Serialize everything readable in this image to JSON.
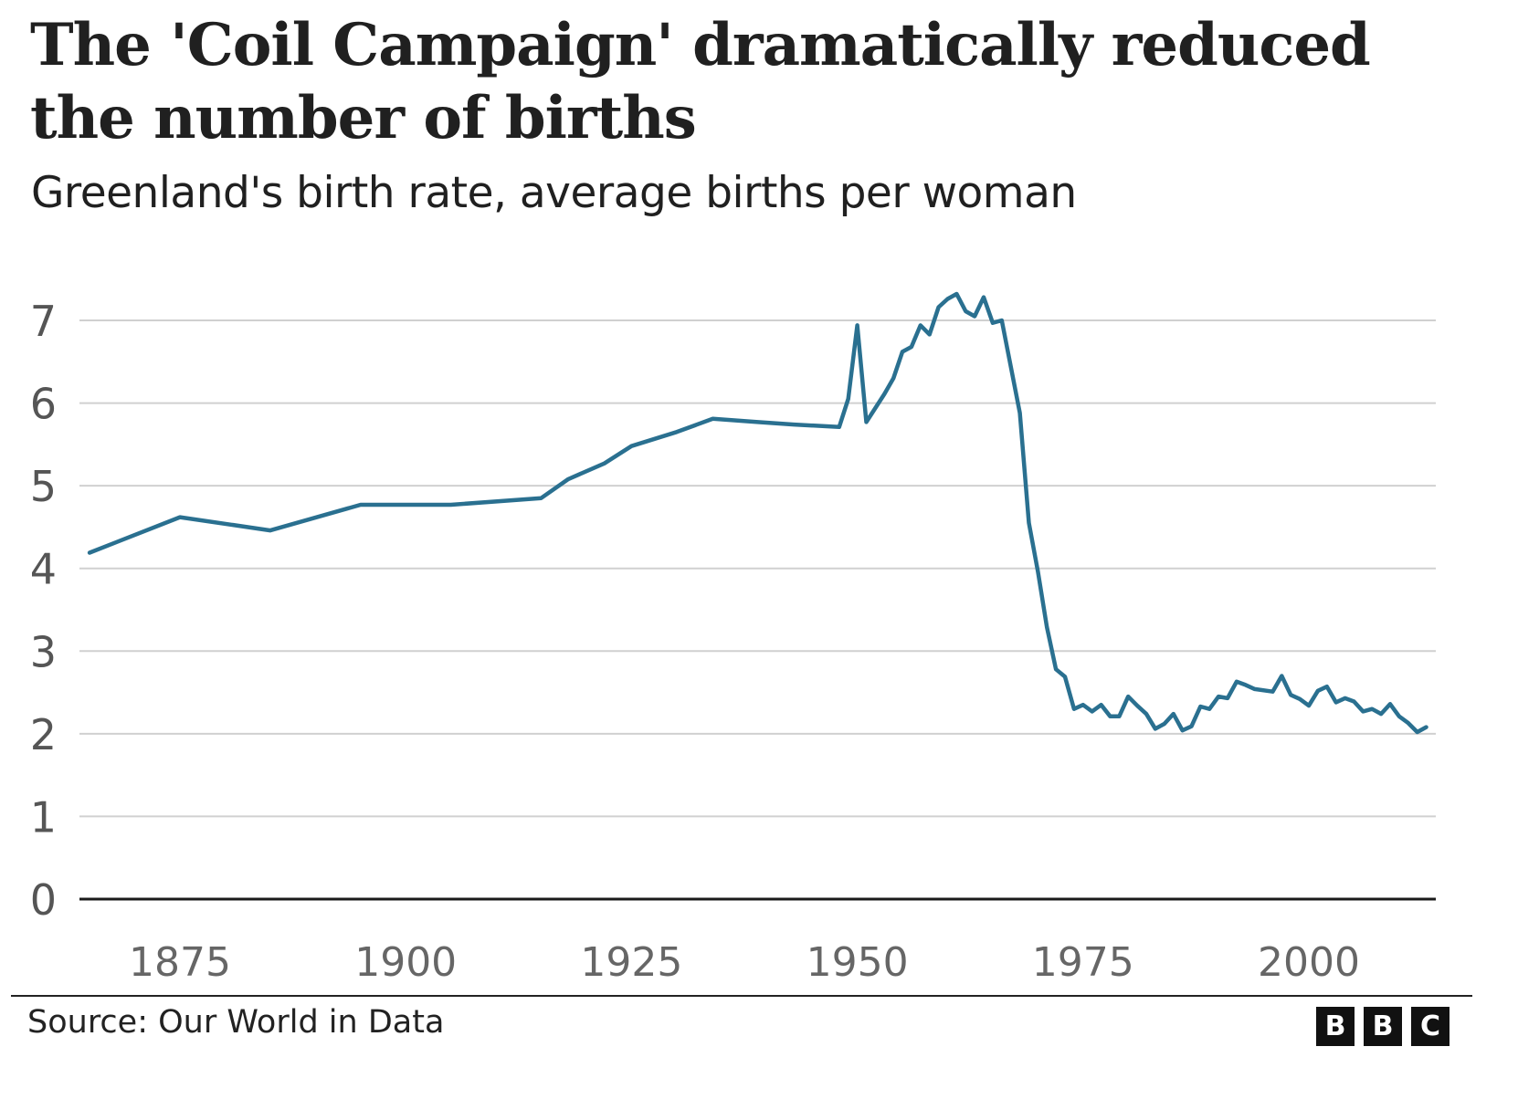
{
  "header": {
    "title": "The 'Coil Campaign' dramatically reduced the number of births",
    "subtitle": "Greenland's birth rate, average births per woman"
  },
  "footer": {
    "source": "Source: Our World in Data",
    "logo_letters": [
      "B",
      "B",
      "C"
    ]
  },
  "colors": {
    "line": "#2a7090",
    "grid": "#d0d0d0",
    "baseline": "#1a1a1a"
  },
  "chart_data": {
    "type": "line",
    "title": "The 'Coil Campaign' dramatically reduced the number of births",
    "subtitle": "Greenland's birth rate, average births per woman",
    "xlabel": "",
    "ylabel": "",
    "xlim": [
      1865,
      2013
    ],
    "ylim": [
      0,
      7
    ],
    "yticks": [
      0,
      1,
      2,
      3,
      4,
      5,
      6,
      7
    ],
    "xticks": [
      1875,
      1900,
      1925,
      1950,
      1975,
      2000
    ],
    "grid": true,
    "legend": "none",
    "series": [
      {
        "name": "Births per woman (Greenland)",
        "x": [
          1865,
          1875,
          1885,
          1895,
          1905,
          1915,
          1918,
          1922,
          1925,
          1930,
          1934,
          1939,
          1943,
          1948,
          1949,
          1950,
          1951,
          1953,
          1954,
          1955,
          1956,
          1957,
          1958,
          1959,
          1960,
          1961,
          1962,
          1963,
          1964,
          1965,
          1966,
          1967,
          1968,
          1969,
          1970,
          1971,
          1972,
          1973,
          1974,
          1975,
          1976,
          1977,
          1978,
          1979,
          1980,
          1981,
          1982,
          1983,
          1984,
          1985,
          1986,
          1987,
          1988,
          1989,
          1990,
          1991,
          1992,
          1993,
          1994,
          1996,
          1997,
          1998,
          1999,
          2000,
          2001,
          2002,
          2003,
          2004,
          2005,
          2006,
          2007,
          2008,
          2009,
          2010,
          2011,
          2012,
          2013
        ],
        "y": [
          4.19,
          4.62,
          4.46,
          4.77,
          4.77,
          4.85,
          5.08,
          5.27,
          5.48,
          5.65,
          5.81,
          5.77,
          5.74,
          5.71,
          6.05,
          6.94,
          5.77,
          6.11,
          6.3,
          6.62,
          6.68,
          6.94,
          6.83,
          7.16,
          7.26,
          7.32,
          7.11,
          7.05,
          7.28,
          6.97,
          7.0,
          6.44,
          5.88,
          4.55,
          3.96,
          3.29,
          2.78,
          2.69,
          2.3,
          2.35,
          2.27,
          2.35,
          2.21,
          2.21,
          2.45,
          2.34,
          2.24,
          2.06,
          2.12,
          2.24,
          2.04,
          2.09,
          2.33,
          2.3,
          2.45,
          2.43,
          2.63,
          2.59,
          2.54,
          2.51,
          2.7,
          2.47,
          2.42,
          2.34,
          2.52,
          2.57,
          2.38,
          2.43,
          2.39,
          2.27,
          2.3,
          2.24,
          2.36,
          2.21,
          2.13,
          2.02,
          2.08
        ]
      }
    ]
  }
}
